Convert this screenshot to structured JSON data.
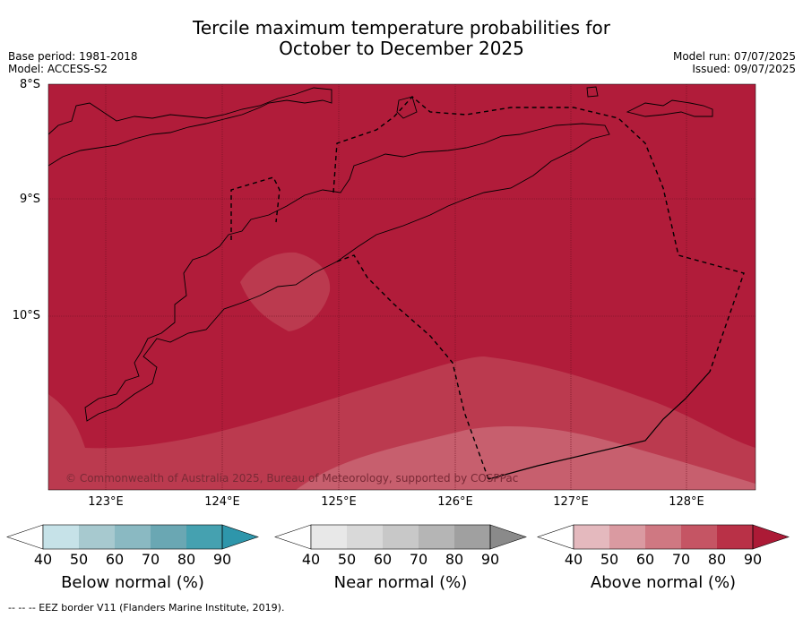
{
  "header": {
    "title_line1": "Tercile maximum temperature probabilities for",
    "title_line2": "October to December 2025",
    "base_period": "Base period: 1981-2018",
    "model": "Model: ACCESS-S2",
    "model_run": "Model run: 07/07/2025",
    "issued": "Issued: 09/07/2025"
  },
  "map": {
    "lat_labels": [
      "8°S",
      "9°S",
      "10°S"
    ],
    "lon_labels": [
      "123°E",
      "124°E",
      "125°E",
      "126°E",
      "127°E",
      "128°E"
    ],
    "copyright": "© Commonwealth of Australia 2025, Bureau of Meteorology, supported by COSPPac",
    "colors": {
      "above_90": "#b11c3a",
      "above_80": "#bb3a4f",
      "above_70": "#c75f6e",
      "land_outline": "#000000"
    }
  },
  "legend": {
    "bars": [
      {
        "label": "Below normal (%)",
        "ticks": [
          "40",
          "50",
          "60",
          "70",
          "80",
          "90"
        ],
        "colors": [
          "#ffffff",
          "#c6e2e8",
          "#a7c9cf",
          "#8ab9c2",
          "#6aa7b3",
          "#45a1b0",
          "#2e96ab"
        ]
      },
      {
        "label": "Near normal (%)",
        "ticks": [
          "40",
          "50",
          "60",
          "70",
          "80",
          "90"
        ],
        "colors": [
          "#ffffff",
          "#e8e8e8",
          "#d9d9d9",
          "#c8c8c8",
          "#b5b5b5",
          "#a0a0a0",
          "#8a8a8a"
        ]
      },
      {
        "label": "Above normal (%)",
        "ticks": [
          "40",
          "50",
          "60",
          "70",
          "80",
          "90"
        ],
        "colors": [
          "#ffffff",
          "#e4b9be",
          "#da9aa1",
          "#cf7882",
          "#c55564",
          "#b93147",
          "#ac1a36"
        ]
      }
    ]
  },
  "footer": {
    "eez_note": "--  --  -- EEZ border V11 (Flanders Marine Institute, 2019)."
  }
}
